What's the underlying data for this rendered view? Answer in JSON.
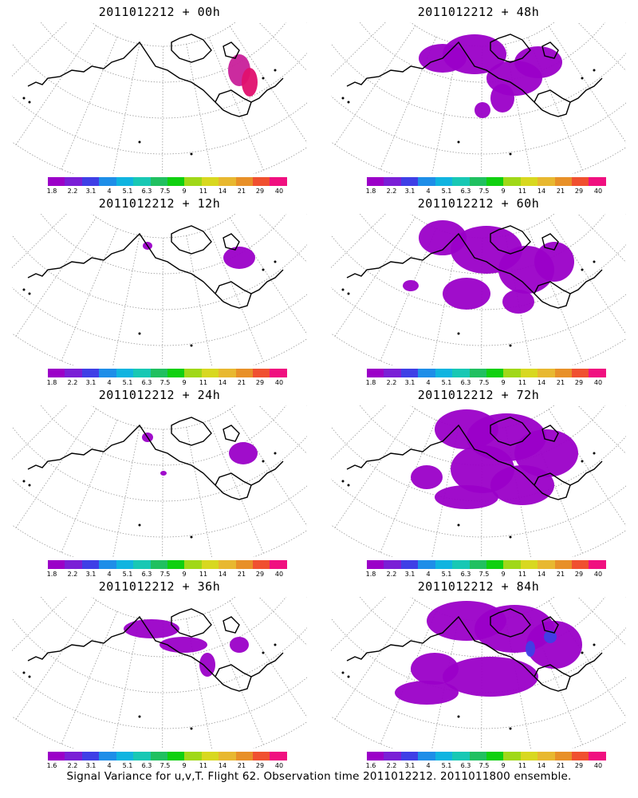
{
  "caption": "Signal Variance for u,v,T. Flight 62. Observation time 2011012212. 2011011800 ensemble.",
  "colorbar": {
    "labels_top": [
      "1.8",
      "2.2",
      "3.1",
      "4",
      "5.1",
      "6.3",
      "7.5",
      "9",
      "11",
      "14",
      "21",
      "29",
      "40"
    ],
    "labels_bottom": [
      "1.6",
      "2.2",
      "3.1",
      "4",
      "5.1",
      "6.3",
      "7.5",
      "9",
      "11",
      "14",
      "21",
      "29",
      "40"
    ],
    "colors": [
      "#9b00c8",
      "#7a1fd6",
      "#3f3fe6",
      "#1e8ee8",
      "#10b4e0",
      "#18c8b4",
      "#20c060",
      "#10d010",
      "#a0d818",
      "#d8d820",
      "#e8b830",
      "#e89028",
      "#f05030",
      "#f01080"
    ]
  },
  "panels": [
    {
      "title": "2011012212 + 00h",
      "blobs": [
        [
          285,
          60,
          14,
          20,
          "#c8209a"
        ],
        [
          298,
          75,
          10,
          18,
          "#e0106e"
        ]
      ]
    },
    {
      "title": "2011012212 + 48h",
      "blobs": [
        [
          140,
          45,
          30,
          18,
          "#9b00c8"
        ],
        [
          180,
          40,
          40,
          25,
          "#9b00c8"
        ],
        [
          230,
          70,
          35,
          22,
          "#9b00c8"
        ],
        [
          260,
          50,
          30,
          20,
          "#9b00c8"
        ],
        [
          215,
          95,
          15,
          18,
          "#9b00c8"
        ],
        [
          190,
          110,
          10,
          10,
          "#9b00c8"
        ]
      ]
    },
    {
      "title": "2011012212 + 12h",
      "blobs": [
        [
          285,
          55,
          20,
          14,
          "#9b00c8"
        ],
        [
          170,
          40,
          6,
          5,
          "#9b00c8"
        ]
      ]
    },
    {
      "title": "2011012212 + 60h",
      "blobs": [
        [
          140,
          30,
          30,
          22,
          "#9b00c8"
        ],
        [
          195,
          45,
          45,
          30,
          "#9b00c8"
        ],
        [
          245,
          70,
          35,
          30,
          "#9b00c8"
        ],
        [
          280,
          60,
          25,
          25,
          "#9b00c8"
        ],
        [
          100,
          90,
          10,
          7,
          "#9b00c8"
        ],
        [
          170,
          100,
          30,
          20,
          "#9b00c8"
        ],
        [
          235,
          110,
          20,
          15,
          "#9b00c8"
        ]
      ]
    },
    {
      "title": "2011012212 + 24h",
      "blobs": [
        [
          290,
          60,
          18,
          14,
          "#9b00c8"
        ],
        [
          170,
          40,
          7,
          6,
          "#9b00c8"
        ],
        [
          190,
          85,
          4,
          3,
          "#9b00c8"
        ]
      ]
    },
    {
      "title": "2011012212 + 72h",
      "blobs": [
        [
          170,
          30,
          40,
          25,
          "#9b00c8"
        ],
        [
          220,
          40,
          50,
          30,
          "#9b00c8"
        ],
        [
          270,
          60,
          40,
          30,
          "#9b00c8"
        ],
        [
          190,
          80,
          40,
          30,
          "#9b00c8"
        ],
        [
          120,
          90,
          20,
          15,
          "#9b00c8"
        ],
        [
          170,
          115,
          40,
          15,
          "#9b00c8"
        ],
        [
          240,
          100,
          40,
          25,
          "#9b00c8"
        ]
      ]
    },
    {
      "title": "2011012212 + 36h",
      "blobs": [
        [
          175,
          40,
          35,
          12,
          "#9b00c8"
        ],
        [
          215,
          60,
          30,
          10,
          "#9b00c8"
        ],
        [
          245,
          85,
          10,
          15,
          "#9b00c8"
        ],
        [
          285,
          60,
          12,
          10,
          "#9b00c8"
        ]
      ]
    },
    {
      "title": "2011012212 + 84h",
      "blobs": [
        [
          170,
          30,
          50,
          25,
          "#9b00c8"
        ],
        [
          230,
          40,
          50,
          30,
          "#9b00c8"
        ],
        [
          280,
          60,
          35,
          30,
          "#9b00c8"
        ],
        [
          130,
          90,
          30,
          20,
          "#9b00c8"
        ],
        [
          200,
          100,
          60,
          25,
          "#9b00c8"
        ],
        [
          120,
          120,
          40,
          15,
          "#9b00c8"
        ],
        [
          250,
          65,
          6,
          10,
          "#3f3fe6"
        ],
        [
          275,
          50,
          8,
          8,
          "#3f3fe6"
        ]
      ]
    }
  ]
}
